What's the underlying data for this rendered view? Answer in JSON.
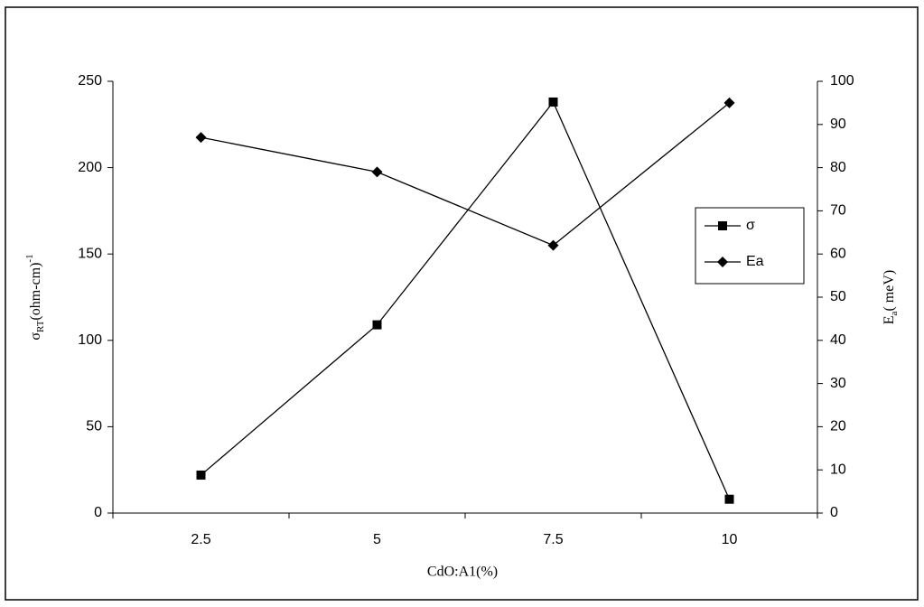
{
  "chart_data": {
    "type": "line",
    "categories": [
      "2.5",
      "5",
      "7.5",
      "10"
    ],
    "x_label": "CdO:A1(%)",
    "y_label": [
      "σ",
      "RT",
      "(ohm-cm)",
      "-1"
    ],
    "y2_label": [
      "E",
      "a",
      "( meV)"
    ],
    "ylim": [
      0,
      250
    ],
    "yticks": [
      0,
      50,
      100,
      150,
      200,
      250
    ],
    "y2lim": [
      0,
      100
    ],
    "y2ticks": [
      0,
      10,
      20,
      30,
      40,
      50,
      60,
      70,
      80,
      90,
      100
    ],
    "series": [
      {
        "name": "σ",
        "color": "#000000",
        "marker": "square",
        "values": [
          22,
          109,
          238,
          8
        ]
      },
      {
        "name": "Ea",
        "color": "#000000",
        "marker": "diamond",
        "axis": "y2",
        "values": [
          87,
          79,
          62,
          95
        ]
      }
    ]
  }
}
